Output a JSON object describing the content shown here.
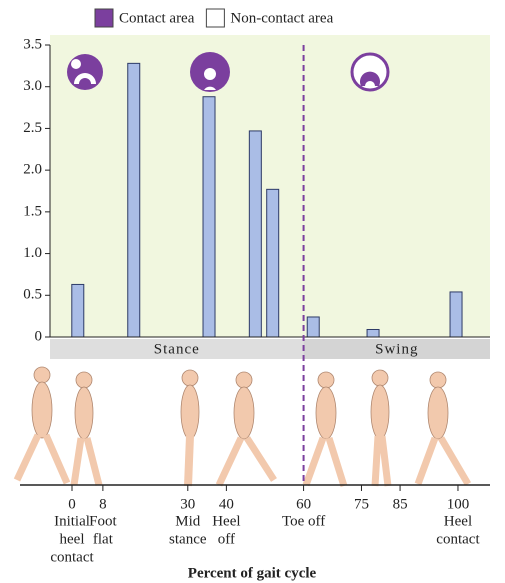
{
  "chart_data": {
    "type": "bar",
    "legend": [
      {
        "label": "Contact area",
        "color": "#7b3f9e"
      },
      {
        "label": "Non-contact area",
        "color": "#ffffff"
      }
    ],
    "x": [
      1.5,
      16,
      35.5,
      47.5,
      52,
      62.5,
      78,
      99.5
    ],
    "values": [
      0.63,
      3.28,
      2.88,
      2.47,
      1.77,
      0.24,
      0.09,
      0.54
    ],
    "color": "#aabde6",
    "xlim": [
      -5.7,
      108.3
    ],
    "ylim": [
      0,
      3.5
    ],
    "yticks": [
      0,
      0.5,
      {
        "value": 1,
        "label": "1.0"
      },
      1.5,
      {
        "value": 2,
        "label": "2.0"
      },
      2.5,
      {
        "value": 3,
        "label": "3.0"
      },
      3.5
    ],
    "phases": [
      "Stance",
      "Swing"
    ],
    "phase_boundary": 60,
    "xticks": [
      0,
      8,
      30,
      40,
      60,
      75,
      85,
      100
    ],
    "events": [
      {
        "x": 0,
        "lines": [
          "Initial",
          "heel",
          "contact"
        ]
      },
      {
        "x": 8,
        "lines": [
          "Foot",
          "flat"
        ]
      },
      {
        "x": 30,
        "lines": [
          "Mid",
          "stance"
        ]
      },
      {
        "x": 40,
        "lines": [
          "Heel",
          "off"
        ]
      },
      {
        "x": 60,
        "lines": [
          "Toe off"
        ]
      },
      {
        "x": 100,
        "lines": [
          "Heel",
          "contact"
        ]
      }
    ],
    "xlabel": "Percent of gait cycle"
  }
}
